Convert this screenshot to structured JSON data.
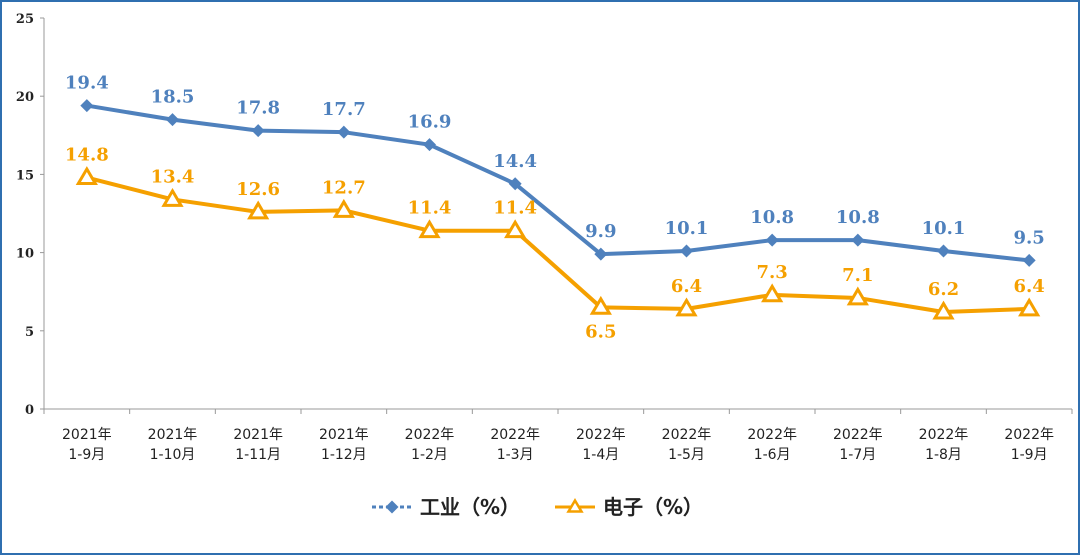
{
  "chart_data": {
    "type": "line",
    "categories": [
      [
        "2021年",
        "1-9月"
      ],
      [
        "2021年",
        "1-10月"
      ],
      [
        "2021年",
        "1-11月"
      ],
      [
        "2021年",
        "1-12月"
      ],
      [
        "2022年",
        "1-2月"
      ],
      [
        "2022年",
        "1-3月"
      ],
      [
        "2022年",
        "1-4月"
      ],
      [
        "2022年",
        "1-5月"
      ],
      [
        "2022年",
        "1-6月"
      ],
      [
        "2022年",
        "1-7月"
      ],
      [
        "2022年",
        "1-8月"
      ],
      [
        "2022年",
        "1-9月"
      ]
    ],
    "series": [
      {
        "name": "工业（%）",
        "color": "#4f81bd",
        "marker": "diamond",
        "values": [
          19.4,
          18.5,
          17.8,
          17.7,
          16.9,
          14.4,
          9.9,
          10.1,
          10.8,
          10.8,
          10.1,
          9.5
        ],
        "labels": [
          "19.4",
          "18.5",
          "17.8",
          "17.7",
          "16.9",
          "14.4",
          "9.9",
          "10.1",
          "10.8",
          "10.8",
          "10.1",
          "9.5"
        ]
      },
      {
        "name": "电子（%）",
        "color": "#f5a000",
        "marker": "triangle",
        "values": [
          14.8,
          13.4,
          12.6,
          12.7,
          11.4,
          11.4,
          6.5,
          6.4,
          7.3,
          7.1,
          6.2,
          6.4
        ],
        "labels": [
          "14.8",
          "13.4",
          "12.6",
          "12.7",
          "11.4",
          "11.4",
          "6.5",
          "6.4",
          "7.3",
          "7.1",
          "6.2",
          "6.4"
        ]
      }
    ],
    "ylim": [
      0,
      25
    ],
    "yticks": [
      0,
      5,
      10,
      15,
      20,
      25
    ],
    "grid": false,
    "legend_position": "bottom-center"
  }
}
